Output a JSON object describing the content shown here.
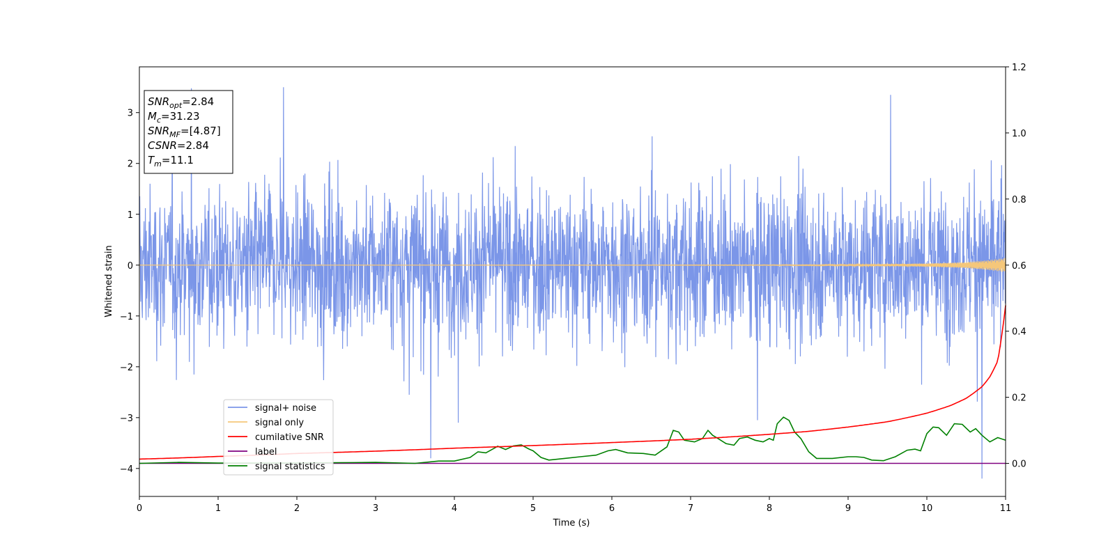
{
  "chart_data": {
    "type": "line",
    "xlabel": "Time (s)",
    "ylabel": "Whitened strain",
    "xlim": [
      0,
      11
    ],
    "ylim": [
      -4.55,
      3.9
    ],
    "y2lim": [
      -0.1,
      1.2
    ],
    "x_ticks": [
      "0",
      "1",
      "2",
      "3",
      "4",
      "5",
      "6",
      "7",
      "8",
      "9",
      "10",
      "11"
    ],
    "y_ticks": [
      "3",
      "2",
      "1",
      "0",
      "−1",
      "−2",
      "−3",
      "−4"
    ],
    "y2_ticks": [
      "1.2",
      "1.0",
      "0.8",
      "0.6",
      "0.4",
      "0.2",
      "0.0"
    ],
    "grid": false,
    "legend_position": "lower-left",
    "colors": {
      "noise": "#7b96e8",
      "signal": "#f5c77a",
      "cumsnr": "#ff0000",
      "label": "#800080",
      "stats": "#008000"
    },
    "series": [
      {
        "name": "signal+ noise",
        "axis": "left",
        "description_level": "noisy signal, amplitude roughly -2.9 to 3.5 with rare spikes to -4.2",
        "min": -4.2,
        "max": 3.5
      },
      {
        "name": "signal only",
        "axis": "left",
        "x": [
          0,
          8,
          9,
          10,
          10.5,
          10.8,
          11
        ],
        "amplitude": [
          0.0,
          0.005,
          0.01,
          0.03,
          0.06,
          0.1,
          0.14
        ]
      },
      {
        "name": "cumilative SNR",
        "axis": "right",
        "x": [
          0,
          1,
          2,
          3,
          4,
          5,
          6,
          7,
          8,
          8.5,
          9,
          9.5,
          10,
          10.3,
          10.5,
          10.7,
          10.8,
          10.9,
          11
        ],
        "values": [
          0.013,
          0.021,
          0.03,
          0.037,
          0.046,
          0.054,
          0.063,
          0.073,
          0.088,
          0.097,
          0.11,
          0.126,
          0.152,
          0.175,
          0.197,
          0.232,
          0.262,
          0.31,
          0.478
        ]
      },
      {
        "name": "label",
        "axis": "right",
        "x": [
          0,
          11
        ],
        "values": [
          0.0,
          0.0
        ]
      },
      {
        "name": "signal statistics",
        "axis": "right",
        "x": [
          0,
          0.5,
          1,
          1.5,
          2,
          2.5,
          3,
          3.5,
          3.8,
          4.0,
          4.2,
          4.3,
          4.4,
          4.5,
          4.55,
          4.65,
          4.75,
          4.85,
          4.95,
          5.0,
          5.1,
          5.2,
          5.4,
          5.6,
          5.8,
          5.95,
          6.05,
          6.2,
          6.4,
          6.55,
          6.7,
          6.78,
          6.85,
          6.92,
          7.05,
          7.15,
          7.22,
          7.28,
          7.35,
          7.45,
          7.55,
          7.62,
          7.72,
          7.82,
          7.92,
          8.0,
          8.05,
          8.1,
          8.18,
          8.25,
          8.32,
          8.4,
          8.5,
          8.6,
          8.8,
          9.0,
          9.1,
          9.2,
          9.3,
          9.45,
          9.6,
          9.75,
          9.85,
          9.92,
          10.0,
          10.08,
          10.15,
          10.25,
          10.35,
          10.45,
          10.55,
          10.62,
          10.7,
          10.8,
          10.9,
          11.0
        ],
        "values": [
          0.0,
          0.003,
          0.001,
          0.001,
          0.001,
          0.002,
          0.003,
          0.0,
          0.007,
          0.007,
          0.018,
          0.035,
          0.032,
          0.045,
          0.052,
          0.042,
          0.053,
          0.056,
          0.043,
          0.038,
          0.018,
          0.01,
          0.015,
          0.02,
          0.025,
          0.038,
          0.042,
          0.032,
          0.03,
          0.025,
          0.05,
          0.1,
          0.095,
          0.07,
          0.065,
          0.075,
          0.1,
          0.085,
          0.075,
          0.06,
          0.055,
          0.075,
          0.08,
          0.07,
          0.065,
          0.075,
          0.07,
          0.12,
          0.14,
          0.13,
          0.095,
          0.075,
          0.035,
          0.015,
          0.015,
          0.02,
          0.02,
          0.018,
          0.01,
          0.008,
          0.02,
          0.04,
          0.043,
          0.038,
          0.09,
          0.11,
          0.108,
          0.085,
          0.12,
          0.118,
          0.095,
          0.105,
          0.085,
          0.065,
          0.078,
          0.07
        ]
      }
    ],
    "annotation": [
      {
        "base": "SNR",
        "sub": "opt",
        "rest": "=2.84"
      },
      {
        "base": "M",
        "sub": "c",
        "rest": "=31.23"
      },
      {
        "base": "SNR",
        "sub": "MF",
        "rest": "=[4.87]"
      },
      {
        "base": "CSNR",
        "sub": "",
        "rest": "=2.84"
      },
      {
        "base": "T",
        "sub": "m",
        "rest": "=11.1"
      }
    ]
  }
}
